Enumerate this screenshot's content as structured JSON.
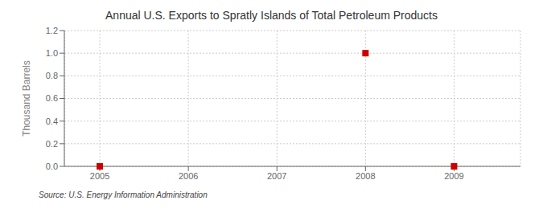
{
  "chart_data": {
    "type": "scatter",
    "title": "Annual U.S. Exports to Spratly Islands of Total Petroleum Products",
    "ylabel": "Thousand Barrels",
    "source": "Source: U.S. Energy Information Administration",
    "x": [
      2005,
      2008,
      2009
    ],
    "values": [
      0.0,
      1.0,
      0.0
    ],
    "color": "#cc0000",
    "marker": "square",
    "xlim": [
      2004.6,
      2009.75
    ],
    "xticks": [
      2005,
      2006,
      2007,
      2008,
      2009
    ],
    "ylim": [
      0.0,
      1.2
    ],
    "yticks": [
      {
        "value": 0,
        "label": "0.0"
      },
      0.2,
      0.4,
      0.6,
      0.8,
      {
        "value": 1,
        "label": "1.0"
      },
      1.2
    ],
    "grid": true
  }
}
